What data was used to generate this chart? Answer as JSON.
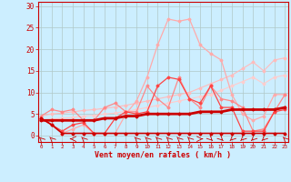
{
  "bg_color": "#cceeff",
  "grid_color": "#b0c8c8",
  "xlabel": "Vent moyen/en rafales ( km/h )",
  "xlabel_color": "#cc0000",
  "x_ticks": [
    0,
    1,
    2,
    3,
    4,
    5,
    6,
    7,
    8,
    9,
    10,
    11,
    12,
    13,
    14,
    15,
    16,
    17,
    18,
    19,
    20,
    21,
    22,
    23
  ],
  "ylim": [
    -1.5,
    31
  ],
  "yticks": [
    0,
    5,
    10,
    15,
    20,
    25,
    30
  ],
  "xlim": [
    -0.3,
    23.3
  ],
  "series": [
    {
      "x": [
        0,
        1,
        2,
        3,
        4,
        5,
        6,
        7,
        8,
        9,
        10,
        11,
        12,
        13,
        14,
        15,
        16,
        17,
        18,
        19,
        20,
        21,
        22,
        23
      ],
      "y": [
        4.5,
        5.0,
        5.2,
        5.5,
        5.8,
        6.0,
        6.3,
        6.6,
        7.0,
        7.5,
        8.0,
        8.5,
        9.0,
        9.5,
        10.0,
        11.0,
        12.0,
        13.0,
        14.0,
        15.5,
        17.0,
        15.0,
        17.5,
        18.0
      ],
      "color": "#ffbbbb",
      "lw": 0.8,
      "marker": "D",
      "ms": 1.5,
      "alpha": 1.0
    },
    {
      "x": [
        0,
        1,
        2,
        3,
        4,
        5,
        6,
        7,
        8,
        9,
        10,
        11,
        12,
        13,
        14,
        15,
        16,
        17,
        18,
        19,
        20,
        21,
        22,
        23
      ],
      "y": [
        3.5,
        3.8,
        4.0,
        4.2,
        4.5,
        4.7,
        5.0,
        5.2,
        5.6,
        6.0,
        6.5,
        7.0,
        7.5,
        8.0,
        8.5,
        9.0,
        9.5,
        10.5,
        11.5,
        12.5,
        13.5,
        12.0,
        13.5,
        14.0
      ],
      "color": "#ffcccc",
      "lw": 0.8,
      "marker": "D",
      "ms": 1.5,
      "alpha": 1.0
    },
    {
      "x": [
        0,
        1,
        2,
        3,
        4,
        5,
        6,
        7,
        8,
        9,
        10,
        11,
        12,
        13,
        14,
        15,
        16,
        17,
        18,
        19,
        20,
        21,
        22,
        23
      ],
      "y": [
        4.0,
        2.5,
        0.5,
        1.5,
        2.5,
        0.5,
        0.5,
        0.5,
        5.0,
        8.0,
        13.5,
        21.0,
        27.0,
        26.5,
        27.0,
        21.0,
        19.0,
        17.5,
        9.5,
        5.0,
        3.5,
        4.5,
        9.5,
        9.5
      ],
      "color": "#ffaaaa",
      "lw": 0.9,
      "marker": "D",
      "ms": 1.5,
      "alpha": 1.0
    },
    {
      "x": [
        0,
        1,
        2,
        3,
        4,
        5,
        6,
        7,
        8,
        9,
        10,
        11,
        12,
        13,
        14,
        15,
        16,
        17,
        18,
        19,
        20,
        21,
        22,
        23
      ],
      "y": [
        4.5,
        6.0,
        5.5,
        6.0,
        3.5,
        3.5,
        6.5,
        7.5,
        5.5,
        5.5,
        11.5,
        8.5,
        6.5,
        13.5,
        8.5,
        6.5,
        11.5,
        8.5,
        8.0,
        6.5,
        1.0,
        1.5,
        5.5,
        9.5
      ],
      "color": "#ff8888",
      "lw": 0.9,
      "marker": "D",
      "ms": 1.5,
      "alpha": 1.0
    },
    {
      "x": [
        0,
        1,
        2,
        3,
        4,
        5,
        6,
        7,
        8,
        9,
        10,
        11,
        12,
        13,
        14,
        15,
        16,
        17,
        18,
        19,
        20,
        21,
        22,
        23
      ],
      "y": [
        4.0,
        2.5,
        1.0,
        2.5,
        3.0,
        0.5,
        0.5,
        4.0,
        5.5,
        5.0,
        5.5,
        11.5,
        13.5,
        13.0,
        8.5,
        7.5,
        11.5,
        6.5,
        6.5,
        1.0,
        1.0,
        1.0,
        5.5,
        6.0
      ],
      "color": "#ff4444",
      "lw": 0.9,
      "marker": "D",
      "ms": 1.5,
      "alpha": 1.0
    },
    {
      "x": [
        0,
        1,
        2,
        3,
        4,
        5,
        6,
        7,
        8,
        9,
        10,
        11,
        12,
        13,
        14,
        15,
        16,
        17,
        18,
        19,
        20,
        21,
        22,
        23
      ],
      "y": [
        4.0,
        2.5,
        0.5,
        0.5,
        0.5,
        0.5,
        0.5,
        0.5,
        0.5,
        0.5,
        0.5,
        0.5,
        0.5,
        0.5,
        0.5,
        0.5,
        0.5,
        0.5,
        0.5,
        0.5,
        0.5,
        0.5,
        0.5,
        0.5
      ],
      "color": "#cc0000",
      "lw": 1.2,
      "marker": "D",
      "ms": 1.5,
      "alpha": 1.0
    },
    {
      "x": [
        0,
        1,
        2,
        3,
        4,
        5,
        6,
        7,
        8,
        9,
        10,
        11,
        12,
        13,
        14,
        15,
        16,
        17,
        18,
        19,
        20,
        21,
        22,
        23
      ],
      "y": [
        3.5,
        3.5,
        3.5,
        3.5,
        3.5,
        3.5,
        4.0,
        4.0,
        4.5,
        4.5,
        5.0,
        5.0,
        5.0,
        5.0,
        5.0,
        5.5,
        5.5,
        5.5,
        6.0,
        6.0,
        6.0,
        6.0,
        6.0,
        6.5
      ],
      "color": "#cc0000",
      "lw": 2.0,
      "marker": "D",
      "ms": 1.5,
      "alpha": 1.0
    }
  ],
  "wind_arrows_x": [
    0,
    1,
    3,
    4,
    9,
    10,
    11,
    12,
    13,
    14,
    15,
    16,
    17,
    18,
    19,
    20,
    21,
    23
  ],
  "wind_angles_deg": [
    225,
    225,
    270,
    225,
    225,
    225,
    225,
    225,
    225,
    225,
    90,
    45,
    45,
    315,
    315,
    315,
    315,
    225
  ]
}
